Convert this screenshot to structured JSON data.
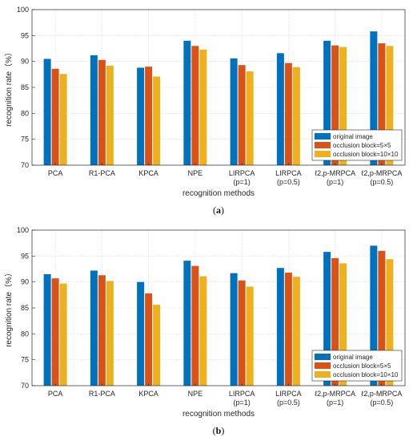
{
  "chart_data": [
    {
      "type": "bar",
      "caption": "(a)",
      "xlabel": "recognition methods",
      "ylabel": "recognition rate（%）",
      "ylim": [
        70,
        100
      ],
      "yticks": [
        70,
        75,
        80,
        85,
        90,
        95,
        100
      ],
      "grid": true,
      "legend_position": "bottom-right",
      "categories": [
        {
          "line1": "PCA",
          "line2": ""
        },
        {
          "line1": "R1-PCA",
          "line2": ""
        },
        {
          "line1": "KPCA",
          "line2": ""
        },
        {
          "line1": "NPE",
          "line2": ""
        },
        {
          "line1": "LIRPCA",
          "line2": "(p=1)"
        },
        {
          "line1": "LIRPCA",
          "line2": "(p=0.5)"
        },
        {
          "line1": "ℓ2,p-MRPCA",
          "line2": "(p=1)"
        },
        {
          "line1": "ℓ2,p-MRPCA",
          "line2": "(p=0.5)"
        }
      ],
      "series": [
        {
          "name": "original image",
          "color": "#0072BD",
          "values": [
            90.5,
            91.2,
            88.8,
            94.0,
            90.6,
            91.6,
            94.0,
            95.8
          ]
        },
        {
          "name": "occlusion block=5×5",
          "color": "#D95319",
          "values": [
            88.6,
            90.3,
            89.0,
            93.0,
            89.3,
            89.7,
            93.1,
            93.5
          ]
        },
        {
          "name": "occlusion block=10×10",
          "color": "#EDB120",
          "values": [
            87.6,
            89.2,
            87.1,
            92.3,
            88.1,
            88.9,
            92.8,
            93.0
          ]
        }
      ]
    },
    {
      "type": "bar",
      "caption": "(b)",
      "xlabel": "recognition methods",
      "ylabel": "recognition rate（%）",
      "ylim": [
        70,
        100
      ],
      "yticks": [
        70,
        75,
        80,
        85,
        90,
        95,
        100
      ],
      "grid": true,
      "legend_position": "bottom-right",
      "categories": [
        {
          "line1": "PCA",
          "line2": ""
        },
        {
          "line1": "R1-PCA",
          "line2": ""
        },
        {
          "line1": "KPCA",
          "line2": ""
        },
        {
          "line1": "NPE",
          "line2": ""
        },
        {
          "line1": "LIRPCA",
          "line2": "(p=1)"
        },
        {
          "line1": "LIRPCA",
          "line2": "(p=0.5)"
        },
        {
          "line1": "ℓ2,p-MRPCA",
          "line2": "(p=1)"
        },
        {
          "line1": "ℓ2,p-MRPCA",
          "line2": "(p=0.5)"
        }
      ],
      "series": [
        {
          "name": "original image",
          "color": "#0072BD",
          "values": [
            91.5,
            92.2,
            90.0,
            94.1,
            91.7,
            92.7,
            95.8,
            97.0
          ]
        },
        {
          "name": "occlusion block=5×5",
          "color": "#D95319",
          "values": [
            90.7,
            91.3,
            87.8,
            93.1,
            90.3,
            91.8,
            94.6,
            96.0
          ]
        },
        {
          "name": "occlusion block=10×10",
          "color": "#EDB120",
          "values": [
            89.7,
            90.2,
            85.6,
            91.1,
            89.1,
            91.0,
            93.6,
            94.4
          ]
        }
      ]
    }
  ]
}
